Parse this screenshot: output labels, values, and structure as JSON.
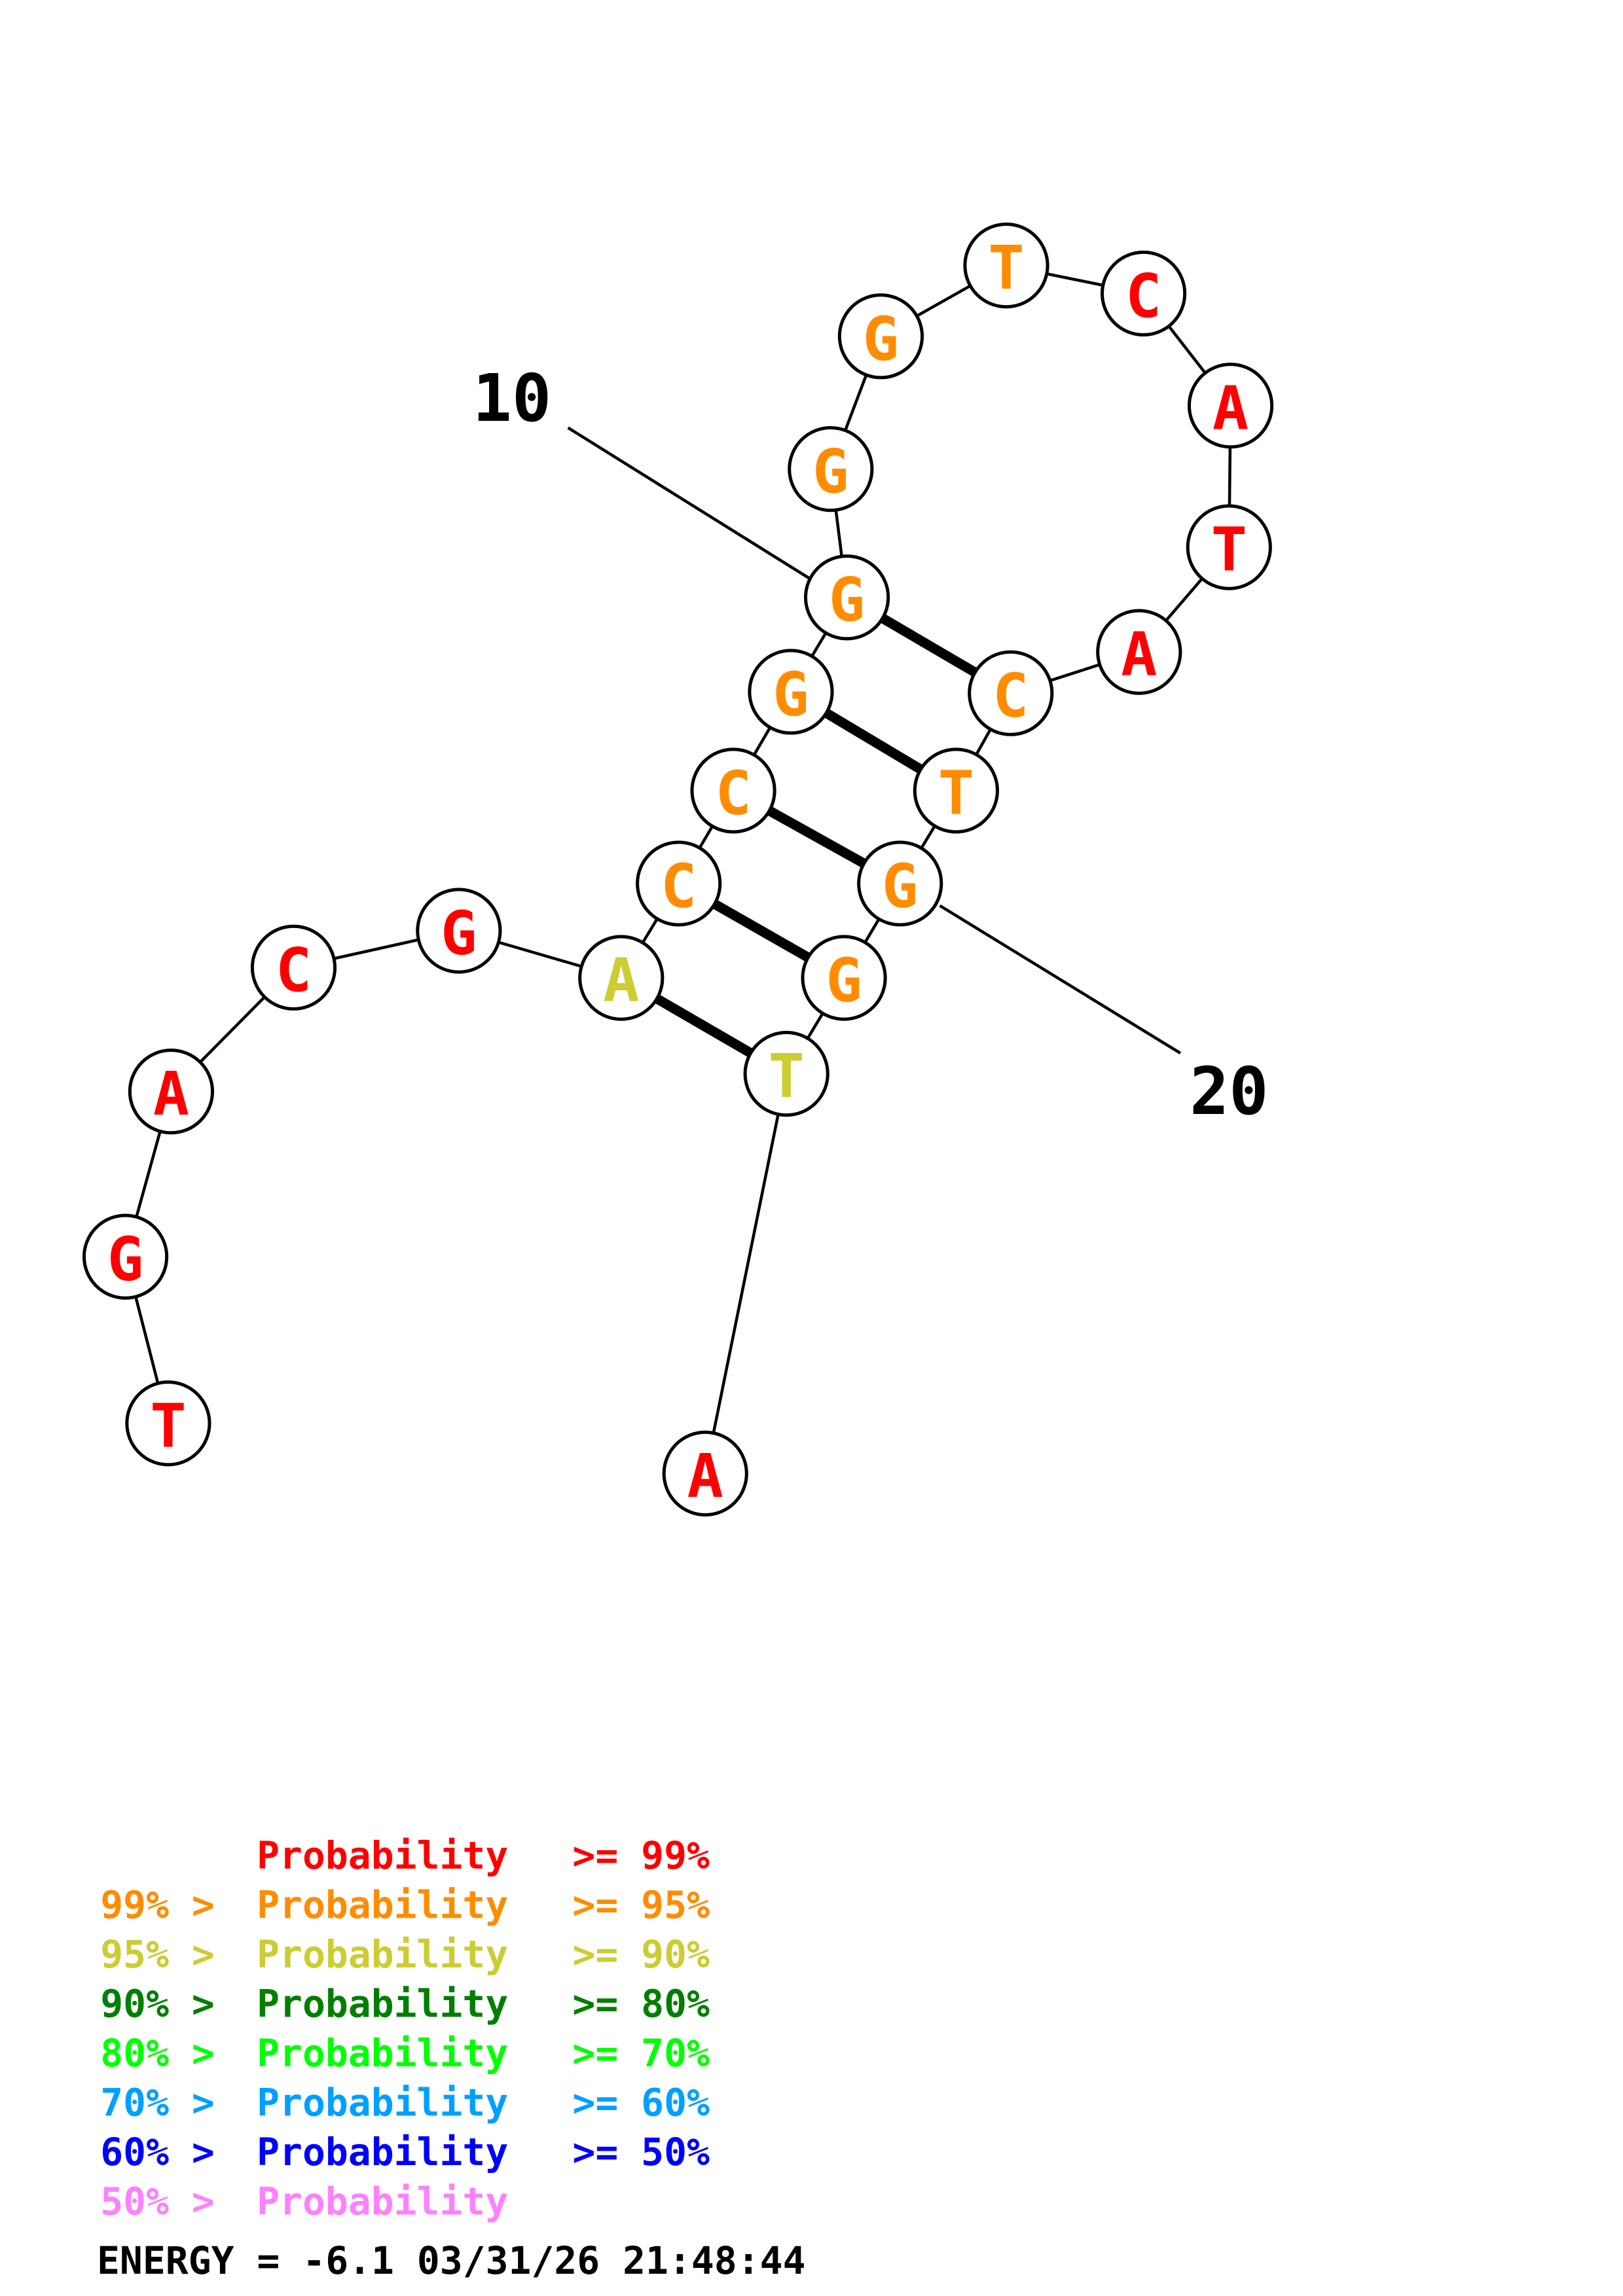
{
  "colors": {
    "red": "#ff0000",
    "orange": "#ff8c00",
    "yellow": "#cccc33",
    "darkgreen": "#007f00",
    "green": "#00ff00",
    "cyan": "#00a0ff",
    "blue": "#0000ff",
    "pink": "#ff80ff"
  },
  "nucleotides": [
    {
      "base": "T",
      "color": "red"
    },
    {
      "base": "G",
      "color": "red"
    },
    {
      "base": "A",
      "color": "red"
    },
    {
      "base": "C",
      "color": "red"
    },
    {
      "base": "G",
      "color": "red"
    },
    {
      "base": "A",
      "color": "yellow"
    },
    {
      "base": "C",
      "color": "orange"
    },
    {
      "base": "C",
      "color": "orange"
    },
    {
      "base": "G",
      "color": "orange"
    },
    {
      "base": "G",
      "color": "orange"
    },
    {
      "base": "G",
      "color": "orange"
    },
    {
      "base": "G",
      "color": "orange"
    },
    {
      "base": "T",
      "color": "orange"
    },
    {
      "base": "C",
      "color": "red"
    },
    {
      "base": "A",
      "color": "red"
    },
    {
      "base": "T",
      "color": "red"
    },
    {
      "base": "A",
      "color": "red"
    },
    {
      "base": "C",
      "color": "orange"
    },
    {
      "base": "T",
      "color": "orange"
    },
    {
      "base": "G",
      "color": "orange"
    },
    {
      "base": "G",
      "color": "orange"
    },
    {
      "base": "T",
      "color": "yellow"
    },
    {
      "base": "A",
      "color": "red"
    }
  ],
  "pairs": [
    [
      6,
      22
    ],
    [
      7,
      21
    ],
    [
      8,
      20
    ],
    [
      9,
      19
    ],
    [
      10,
      18
    ]
  ],
  "numbering": [
    {
      "label": "10",
      "index": 10
    },
    {
      "label": "20",
      "index": 20
    }
  ],
  "legend": [
    {
      "prefix": "",
      "label": "Probability",
      "suffix": ">= 99%",
      "color": "red"
    },
    {
      "prefix": "99% >",
      "label": "Probability",
      "suffix": ">= 95%",
      "color": "orange"
    },
    {
      "prefix": "95% >",
      "label": "Probability",
      "suffix": ">= 90%",
      "color": "yellow"
    },
    {
      "prefix": "90% >",
      "label": "Probability",
      "suffix": ">= 80%",
      "color": "darkgreen"
    },
    {
      "prefix": "80% >",
      "label": "Probability",
      "suffix": ">= 70%",
      "color": "green"
    },
    {
      "prefix": "70% >",
      "label": "Probability",
      "suffix": ">= 60%",
      "color": "cyan"
    },
    {
      "prefix": "60% >",
      "label": "Probability",
      "suffix": ">= 50%",
      "color": "blue"
    },
    {
      "prefix": "50% >",
      "label": "Probability",
      "suffix": "",
      "color": "pink"
    }
  ],
  "energy": "ENERGY = -6.1  03/31/26 21:48:44"
}
